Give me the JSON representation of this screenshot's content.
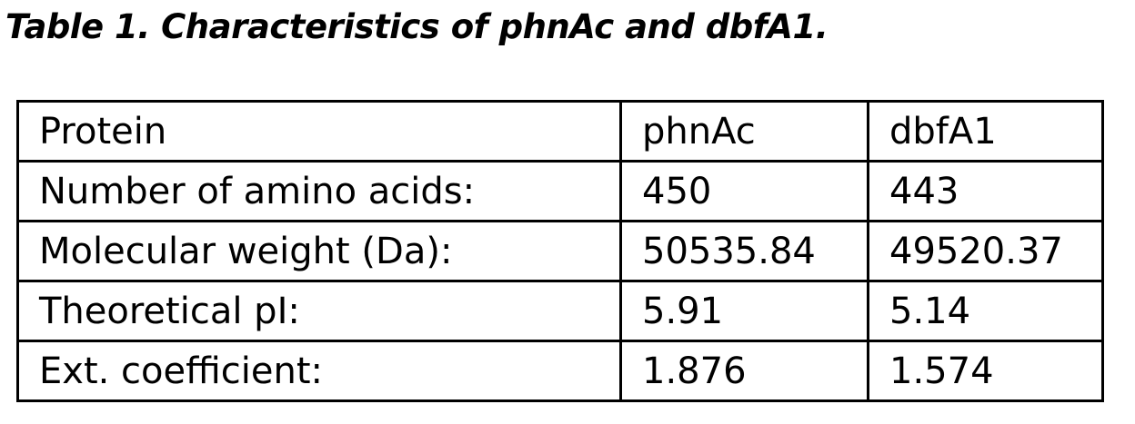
{
  "caption": "Table 1. Characteristics of phnAc and dbfA1.",
  "table": {
    "rows": [
      {
        "label": "Protein",
        "phnAc": "phnAc",
        "dbfA1": "dbfA1"
      },
      {
        "label": "Number of amino acids:",
        "phnAc": "450",
        "dbfA1": "443"
      },
      {
        "label": "Molecular weight (Da):",
        "phnAc": "50535.84",
        "dbfA1": "49520.37"
      },
      {
        "label": "Theoretical pI:",
        "phnAc": "5.91",
        "dbfA1": "5.14"
      },
      {
        "label": "Ext. coefficient:",
        "phnAc": "1.876",
        "dbfA1": "1.574"
      }
    ]
  }
}
